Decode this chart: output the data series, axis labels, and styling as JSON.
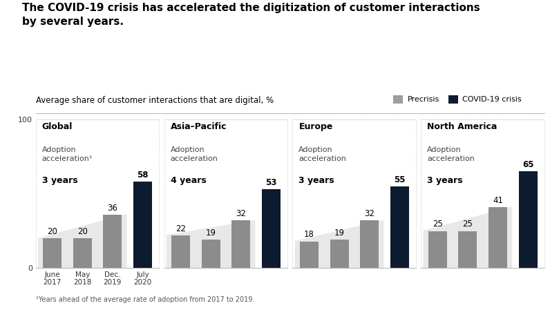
{
  "title": "The COVID-19 crisis has accelerated the digitization of customer interactions\nby several years.",
  "subtitle": "Average share of customer interactions that are digital, %",
  "footnote": "¹Years ahead of the average rate of adoption from 2017 to 2019.",
  "legend": [
    "Precrisis",
    "COVID-19 crisis"
  ],
  "legend_colors": [
    "#9e9e9e",
    "#0d1b2e"
  ],
  "ylim": [
    0,
    100
  ],
  "regions": [
    "Global",
    "Asia–Pacific",
    "Europe",
    "North America"
  ],
  "adoption_labels": [
    "3 years",
    "4 years",
    "3 years",
    "3 years"
  ],
  "adoption_superscript": [
    true,
    false,
    false,
    false
  ],
  "x_tick_labels": [
    "June\n2017",
    "May\n2018",
    "Dec.\n2019",
    "July\n2020"
  ],
  "values": [
    [
      20,
      20,
      36,
      58
    ],
    [
      22,
      19,
      32,
      53
    ],
    [
      18,
      19,
      32,
      55
    ],
    [
      25,
      25,
      41,
      65
    ]
  ],
  "bar_colors": [
    [
      "#8c8c8c",
      "#8c8c8c",
      "#8c8c8c",
      "#0d1b2e"
    ],
    [
      "#8c8c8c",
      "#8c8c8c",
      "#8c8c8c",
      "#0d1b2e"
    ],
    [
      "#8c8c8c",
      "#8c8c8c",
      "#8c8c8c",
      "#0d1b2e"
    ],
    [
      "#8c8c8c",
      "#8c8c8c",
      "#8c8c8c",
      "#0d1b2e"
    ]
  ],
  "bg_color": "#ffffff",
  "grid_color": "#d0d0d0",
  "triangle_color": "#e8e8e8",
  "border_color": "#bbbbbb"
}
